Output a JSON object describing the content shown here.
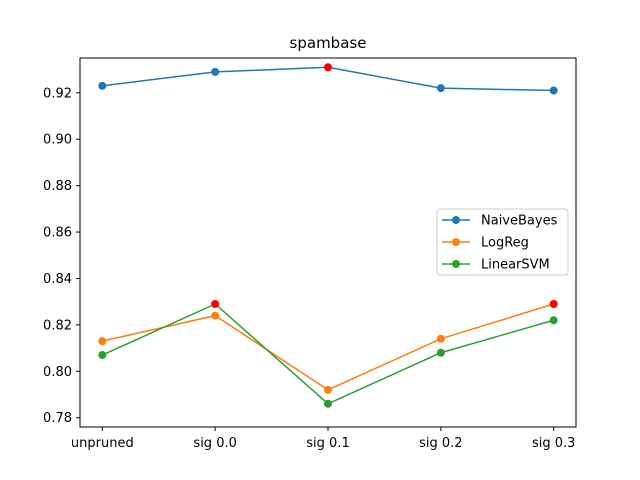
{
  "chart_data": {
    "type": "line",
    "title": "spambase",
    "xlabel": "",
    "ylabel": "",
    "categories": [
      "unpruned",
      "sig 0.0",
      "sig 0.1",
      "sig 0.2",
      "sig 0.3"
    ],
    "ylim": [
      0.776,
      0.935
    ],
    "yticks": [
      "0.78",
      "0.80",
      "0.82",
      "0.84",
      "0.86",
      "0.88",
      "0.90",
      "0.92"
    ],
    "grid": false,
    "legend_position": "center-right",
    "series": [
      {
        "name": "NaiveBayes",
        "color": "#1f77b4",
        "values": [
          0.923,
          0.929,
          0.931,
          0.922,
          0.921
        ]
      },
      {
        "name": "LogReg",
        "color": "#ff7f0e",
        "values": [
          0.813,
          0.824,
          0.792,
          0.814,
          0.829
        ]
      },
      {
        "name": "LinearSVM",
        "color": "#2ca02c",
        "values": [
          0.807,
          0.829,
          0.786,
          0.808,
          0.822
        ]
      }
    ],
    "highlight_color": "#ff0000",
    "highlighted_points": [
      {
        "series": "NaiveBayes",
        "category": "sig 0.1"
      },
      {
        "series": "LogReg",
        "category": "sig 0.3"
      },
      {
        "series": "LinearSVM",
        "category": "sig 0.0"
      }
    ]
  }
}
